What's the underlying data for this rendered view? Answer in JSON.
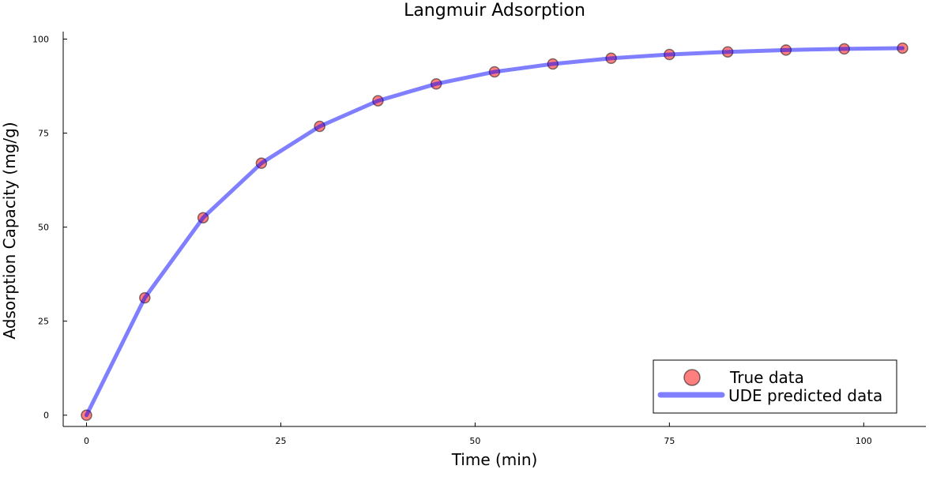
{
  "chart_data": {
    "type": "scatter",
    "title": "Langmuir Adsorption",
    "xlabel": "Time (min)",
    "ylabel": "Adsorption Capacity (mg/g)",
    "xlim": [
      -3,
      108
    ],
    "ylim": [
      -3,
      102
    ],
    "xticks": [
      0,
      25,
      50,
      75,
      100
    ],
    "yticks": [
      0,
      25,
      50,
      75,
      100
    ],
    "grid": false,
    "legend_position": "bottom-right",
    "series": [
      {
        "name": "True data",
        "kind": "scatter",
        "color": "#ff0000",
        "x": [
          0,
          7.5,
          15,
          22.5,
          30,
          37.5,
          45,
          52.5,
          60,
          67.5,
          75,
          82.5,
          90,
          97.5,
          105
        ],
        "y": [
          0,
          31.2,
          52.5,
          67,
          76.8,
          83.6,
          88.1,
          91.3,
          93.4,
          94.9,
          95.9,
          96.6,
          97.1,
          97.4,
          97.6
        ]
      },
      {
        "name": "UDE predicted data",
        "kind": "line",
        "color": "#0000ff",
        "x": [
          0,
          7.5,
          15,
          22.5,
          30,
          37.5,
          45,
          52.5,
          60,
          67.5,
          75,
          82.5,
          90,
          97.5,
          105
        ],
        "y": [
          0,
          31.2,
          52.5,
          67,
          76.8,
          83.6,
          88.1,
          91.3,
          93.4,
          94.9,
          95.9,
          96.6,
          97.1,
          97.4,
          97.6
        ]
      }
    ]
  }
}
